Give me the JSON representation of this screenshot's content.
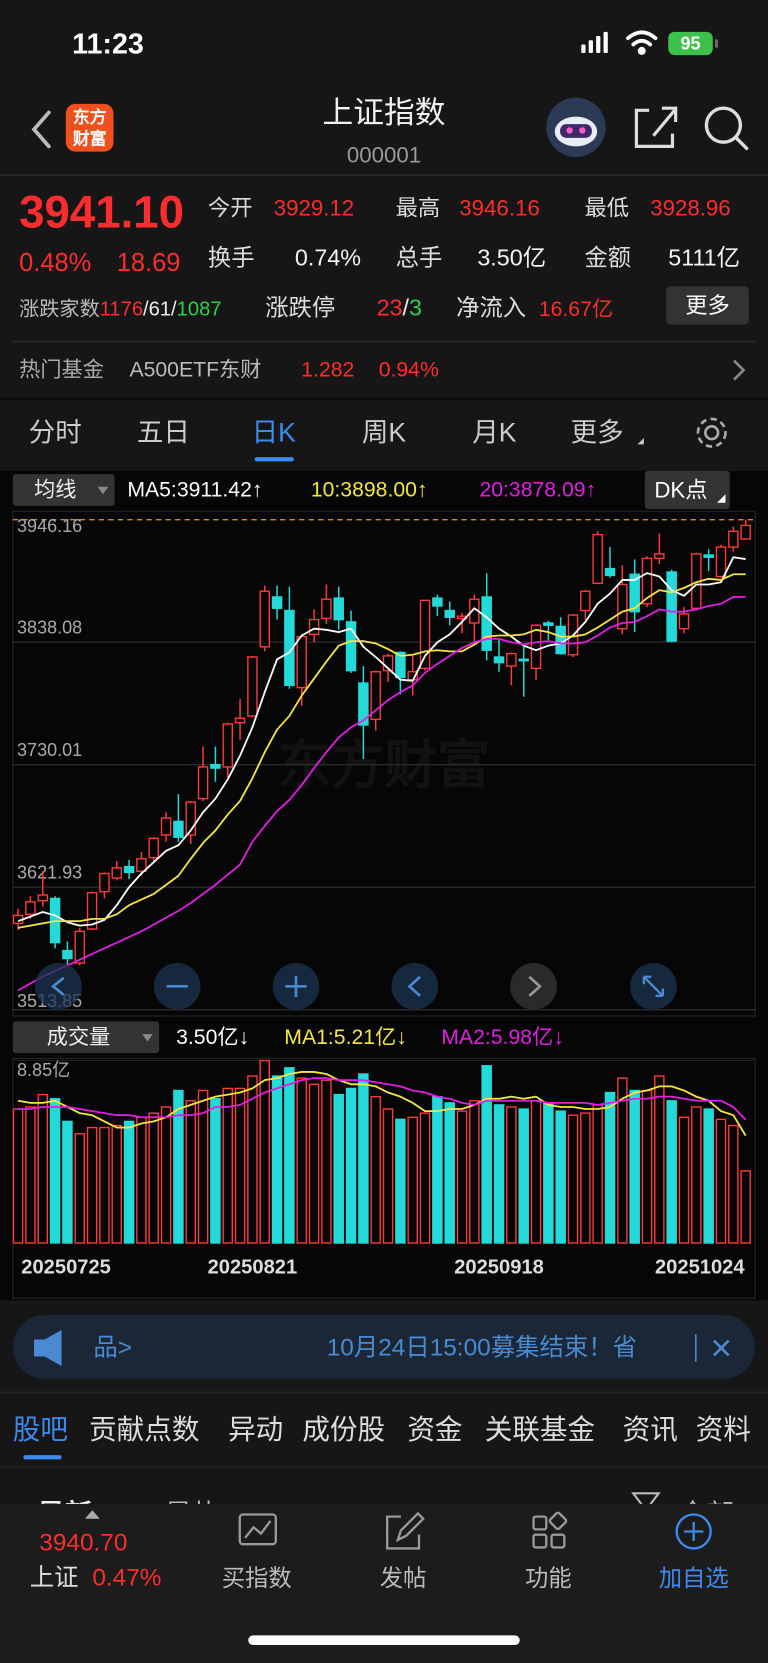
{
  "status": {
    "time": "11:23",
    "battery": "95"
  },
  "header": {
    "logo_top": "东方",
    "logo_bottom": "财富",
    "title": "上证指数",
    "code": "000001"
  },
  "quote": {
    "price": "3941.10",
    "change_pct": "0.48%",
    "change": "18.69",
    "open_label": "今开",
    "open": "3929.12",
    "high_label": "最高",
    "high": "3946.16",
    "low_label": "最低",
    "low": "3928.96",
    "turnover_label": "换手",
    "turnover": "0.74%",
    "volume_label": "总手",
    "volume": "3.50亿",
    "amount_label": "金额",
    "amount": "5111亿",
    "breadth": {
      "label": "涨跌家数",
      "up": "1176",
      "sep1": "/",
      "flat": "61",
      "sep2": "/",
      "down": "1087"
    },
    "limit": {
      "label": "涨跌停",
      "up": "23",
      "sep": "/",
      "down": "3"
    },
    "inflow_label": "净流入",
    "inflow": "16.67亿",
    "more": "更多"
  },
  "fund": {
    "label": "热门基金",
    "name": "A500ETF东财",
    "price": "1.282",
    "pct": "0.94%"
  },
  "tabs": [
    "分时",
    "五日",
    "日K",
    "周K",
    "月K",
    "更多"
  ],
  "ma_selector": "均线",
  "dk": "DK点",
  "volume_selector": "成交量",
  "watermark": "东方财富",
  "chart_data": [
    {
      "type": "candlestick",
      "up_color": "#ff3b3b",
      "down_color": "#25d9d9",
      "ylim": [
        3513.85,
        3946.16
      ],
      "yticks": [
        3946.16,
        3838.08,
        3730.01,
        3621.93,
        3513.85
      ],
      "grid": true,
      "legend": [
        "MA5:3911.42↑",
        "10:3898.00↑",
        "20:3878.09↑"
      ],
      "candles": [
        [
          3590,
          3603,
          3584,
          3597
        ],
        [
          3598,
          3614,
          3594,
          3609
        ],
        [
          3610,
          3636,
          3605,
          3615
        ],
        [
          3612,
          3614,
          3568,
          3573
        ],
        [
          3566,
          3574,
          3553,
          3559
        ],
        [
          3555,
          3586,
          3553,
          3583
        ],
        [
          3585,
          3618,
          3584,
          3617
        ],
        [
          3618,
          3635,
          3612,
          3634
        ],
        [
          3630,
          3645,
          3628,
          3639
        ],
        [
          3640,
          3646,
          3629,
          3635
        ],
        [
          3636,
          3653,
          3632,
          3647
        ],
        [
          3648,
          3666,
          3645,
          3665
        ],
        [
          3668,
          3688,
          3662,
          3683
        ],
        [
          3680,
          3704,
          3662,
          3666
        ],
        [
          3668,
          3698,
          3660,
          3697
        ],
        [
          3700,
          3746,
          3698,
          3728
        ],
        [
          3730,
          3746,
          3715,
          3727
        ],
        [
          3728,
          3767,
          3718,
          3766
        ],
        [
          3767,
          3788,
          3752,
          3771
        ],
        [
          3773,
          3826,
          3772,
          3825
        ],
        [
          3834,
          3888,
          3830,
          3883
        ],
        [
          3878,
          3888,
          3858,
          3868
        ],
        [
          3866,
          3887,
          3797,
          3800
        ],
        [
          3798,
          3845,
          3782,
          3843
        ],
        [
          3845,
          3867,
          3838,
          3858
        ],
        [
          3859,
          3889,
          3854,
          3876
        ],
        [
          3877,
          3887,
          3849,
          3858
        ],
        [
          3856,
          3866,
          3811,
          3813
        ],
        [
          3802,
          3817,
          3735,
          3765
        ],
        [
          3770,
          3813,
          3760,
          3812
        ],
        [
          3813,
          3828,
          3803,
          3826
        ],
        [
          3829,
          3830,
          3792,
          3807
        ],
        [
          3805,
          3826,
          3791,
          3812
        ],
        [
          3815,
          3875,
          3813,
          3875
        ],
        [
          3877,
          3880,
          3861,
          3870
        ],
        [
          3866,
          3874,
          3853,
          3860
        ],
        [
          3859,
          3864,
          3846,
          3861
        ],
        [
          3855,
          3880,
          3838,
          3876
        ],
        [
          3878,
          3899,
          3822,
          3831
        ],
        [
          3825,
          3840,
          3812,
          3820
        ],
        [
          3817,
          3829,
          3800,
          3828
        ],
        [
          3823,
          3834,
          3790,
          3822
        ],
        [
          3815,
          3854,
          3805,
          3853
        ],
        [
          3855,
          3857,
          3840,
          3853
        ],
        [
          3852,
          3860,
          3827,
          3828
        ],
        [
          3827,
          3863,
          3825,
          3862
        ],
        [
          3866,
          3884,
          3858,
          3883
        ],
        [
          3890,
          3936,
          3890,
          3933
        ],
        [
          3903,
          3922,
          3895,
          3897
        ],
        [
          3850,
          3906,
          3845,
          3889
        ],
        [
          3898,
          3911,
          3847,
          3865
        ],
        [
          3872,
          3914,
          3869,
          3912
        ],
        [
          3912,
          3934,
          3907,
          3916
        ],
        [
          3900,
          3902,
          3838,
          3839
        ],
        [
          3850,
          3869,
          3846,
          3863
        ],
        [
          3868,
          3917,
          3866,
          3916
        ],
        [
          3915,
          3920,
          3901,
          3913
        ],
        [
          3896,
          3924,
          3895,
          3922
        ],
        [
          3922,
          3940,
          3918,
          3936
        ],
        [
          3929.12,
          3946.16,
          3928.96,
          3941.1
        ]
      ],
      "series": [
        {
          "color": "#ffffff",
          "values": [
            3592,
            3596,
            3600,
            3597,
            3591,
            3588,
            3589,
            3593,
            3606,
            3622,
            3634,
            3644,
            3654,
            3659,
            3672,
            3688,
            3700,
            3717,
            3738,
            3763,
            3794,
            3823,
            3829,
            3844,
            3850,
            3849,
            3847,
            3850,
            3834,
            3825,
            3815,
            3805,
            3804,
            3826,
            3838,
            3845,
            3856,
            3868,
            3860,
            3850,
            3843,
            3835,
            3831,
            3835,
            3837,
            3844,
            3856,
            3872,
            3881,
            3893,
            3893,
            3899,
            3896,
            3884,
            3879,
            3889,
            3889,
            3891,
            3913,
            3911.42
          ]
        },
        {
          "color": "#f5e642",
          "values": [
            3586,
            3588,
            3590,
            3592,
            3592,
            3592,
            3594,
            3594,
            3598,
            3606,
            3611,
            3616,
            3624,
            3632,
            3647,
            3661,
            3672,
            3686,
            3698,
            3718,
            3741,
            3761,
            3773,
            3791,
            3806,
            3821,
            3835,
            3839,
            3839,
            3837,
            3832,
            3826,
            3827,
            3830,
            3831,
            3830,
            3830,
            3836,
            3843,
            3844,
            3844,
            3845,
            3849,
            3847,
            3843,
            3843,
            3845,
            3851,
            3858,
            3865,
            3868,
            3877,
            3884,
            3882,
            3886,
            3891,
            3894,
            3893,
            3898,
            3898.0
          ]
        },
        {
          "color": "#e020e0",
          "values": [
            3531,
            3537,
            3543,
            3548,
            3553,
            3558,
            3563,
            3568,
            3573,
            3578,
            3583,
            3589,
            3595,
            3601,
            3608,
            3616,
            3624,
            3633,
            3642,
            3662,
            3676,
            3689,
            3699,
            3712,
            3727,
            3741,
            3754,
            3763,
            3769,
            3778,
            3787,
            3794,
            3800,
            3811,
            3819,
            3826,
            3833,
            3838,
            3841,
            3841,
            3838,
            3836,
            3838,
            3839,
            3837,
            3837,
            3838,
            3844,
            3851,
            3855,
            3856,
            3861,
            3867,
            3865,
            3865,
            3867,
            3870,
            3872,
            3878,
            3878.09
          ]
        }
      ]
    },
    {
      "type": "bar",
      "up_color": "#ff3b3b",
      "down_color": "#25d9d9",
      "ylim": [
        0,
        8.85
      ],
      "yticks": [
        {
          "value": 8.85,
          "label": "8.85亿"
        }
      ],
      "legend": [
        "3.50亿↓",
        "MA1:5.21亿↓",
        "MA2:5.98亿↓"
      ],
      "categories": [
        "20250725",
        null,
        null,
        null,
        null,
        null,
        null,
        null,
        null,
        null,
        null,
        null,
        null,
        null,
        null,
        null,
        null,
        null,
        null,
        "20250821",
        null,
        null,
        null,
        null,
        null,
        null,
        null,
        null,
        null,
        null,
        null,
        null,
        null,
        null,
        null,
        null,
        null,
        null,
        null,
        "20250918",
        null,
        null,
        null,
        null,
        null,
        null,
        null,
        null,
        null,
        null,
        null,
        null,
        null,
        null,
        null,
        null,
        null,
        null,
        null,
        "20251024"
      ],
      "values": [
        6.5,
        6.6,
        7.2,
        7.0,
        5.9,
        5.3,
        5.6,
        5.6,
        5.7,
        5.9,
        6.1,
        6.3,
        6.6,
        7.4,
        6.9,
        7.4,
        7.0,
        7.5,
        7.5,
        8.1,
        8.85,
        8.1,
        8.5,
        8.0,
        7.7,
        7.9,
        7.2,
        7.5,
        8.2,
        7.1,
        6.5,
        6.0,
        6.1,
        6.3,
        7.1,
        6.8,
        6.4,
        6.9,
        8.6,
        6.7,
        6.6,
        6.5,
        6.9,
        6.8,
        6.4,
        6.2,
        6.3,
        6.7,
        7.3,
        8.0,
        7.4,
        7.4,
        8.1,
        6.9,
        6.1,
        6.6,
        6.5,
        6.0,
        5.7,
        3.5
      ],
      "series": [
        {
          "color": "#f5e642",
          "values": [
            6.9,
            6.8,
            6.8,
            6.9,
            6.6,
            6.3,
            6.2,
            5.9,
            5.6,
            5.6,
            5.8,
            5.9,
            6.1,
            6.5,
            6.7,
            6.9,
            7.1,
            7.2,
            7.3,
            7.5,
            7.9,
            8.0,
            8.2,
            8.3,
            8.3,
            8.2,
            7.9,
            7.7,
            7.7,
            7.6,
            7.3,
            7.1,
            6.8,
            6.4,
            6.4,
            6.5,
            6.5,
            6.7,
            7.0,
            7.0,
            7.1,
            7.0,
            7.1,
            6.7,
            6.6,
            6.6,
            6.5,
            6.5,
            6.6,
            7.0,
            7.3,
            7.4,
            7.6,
            7.6,
            7.4,
            7.1,
            6.9,
            6.4,
            6.2,
            5.21
          ]
        },
        {
          "color": "#e020e0",
          "values": [
            6.5,
            6.5,
            6.6,
            6.6,
            6.6,
            6.5,
            6.4,
            6.3,
            6.2,
            6.2,
            6.1,
            6.1,
            6.1,
            6.2,
            6.2,
            6.3,
            6.6,
            6.6,
            6.7,
            7.0,
            7.3,
            7.5,
            7.7,
            7.9,
            8.0,
            8.0,
            7.9,
            7.9,
            7.9,
            7.8,
            7.7,
            7.6,
            7.4,
            7.3,
            7.1,
            7.0,
            6.8,
            6.7,
            6.9,
            6.9,
            6.9,
            6.9,
            6.9,
            6.8,
            6.8,
            6.8,
            6.8,
            6.7,
            6.8,
            6.9,
            7.0,
            7.0,
            7.1,
            7.1,
            7.0,
            6.9,
            6.9,
            6.9,
            6.6,
            5.98
          ]
        }
      ]
    }
  ],
  "banner": {
    "product": "品>",
    "text": "10月24日15:00募集结束！省"
  },
  "sections": [
    "股吧",
    "贡献点数",
    "异动",
    "成份股",
    "资金",
    "关联基金",
    "资讯",
    "资料"
  ],
  "sort": {
    "latest": "最新",
    "hot": "最热",
    "all": "全部"
  },
  "bottom": {
    "price": "3940.70",
    "name": "上证",
    "pct": "0.47%",
    "buy": "买指数",
    "post": "发帖",
    "func": "功能",
    "add": "加自选"
  }
}
